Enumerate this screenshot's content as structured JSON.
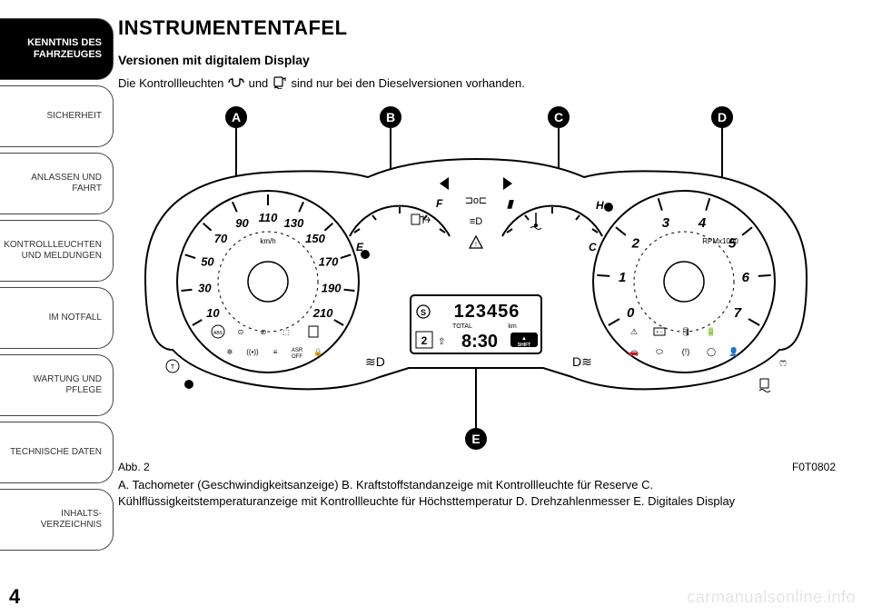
{
  "page_number": "4",
  "sidebar": {
    "items": [
      {
        "label": "KENNTNIS DES\nFAHRZEUGES",
        "active": true
      },
      {
        "label": "SICHERHEIT",
        "active": false
      },
      {
        "label": "ANLASSEN UND\nFAHRT",
        "active": false
      },
      {
        "label": "KONTROLLLEUCHTEN\nUND MELDUNGEN",
        "active": false
      },
      {
        "label": "IM NOTFALL",
        "active": false
      },
      {
        "label": "WARTUNG UND\nPFLEGE",
        "active": false
      },
      {
        "label": "TECHNISCHE DATEN",
        "active": false
      },
      {
        "label": "INHALTS-\nVERZEICHNIS",
        "active": false
      }
    ]
  },
  "title": "INSTRUMENTENTAFEL",
  "subtitle": "Versionen mit digitalem Display",
  "intro_pre": "Die Kontrollleuchten ",
  "intro_mid": " und ",
  "intro_post": " sind nur bei den Dieselversionen vorhanden.",
  "figure": {
    "caption_left": "Abb. 2",
    "caption_right": "F0T0802",
    "callouts": [
      "A",
      "B",
      "C",
      "D",
      "E"
    ],
    "cluster": {
      "bg": "#ffffff",
      "stroke": "#000000",
      "speedo": {
        "unit": "km/h",
        "ticks": [
          "10",
          "30",
          "50",
          "70",
          "90",
          "110",
          "130",
          "150",
          "170",
          "190",
          "210"
        ]
      },
      "tacho": {
        "unit": "RPMx1000",
        "ticks": [
          "0",
          "1",
          "2",
          "3",
          "4",
          "5",
          "6",
          "7"
        ]
      },
      "fuel": {
        "E": "E",
        "F": "F"
      },
      "temp": {
        "C": "C",
        "H": "H"
      },
      "display": {
        "odo": "123456",
        "odo_label_left": "TOTAL",
        "odo_label_right": "km",
        "gear": "2",
        "clock": "8:30",
        "shift": "SHIFT",
        "s_icon": "S"
      }
    }
  },
  "description": "A. Tachometer (Geschwindigkeitsanzeige) B. Kraftstoffstandanzeige mit Kontrollleuchte für Reserve C. Kühlflüssigkeitstemperaturanzeige mit Kontrollleuchte für Höchsttemperatur D. Drehzahlenmesser E. Digitales Display",
  "watermark": "carmanualsonline.info"
}
